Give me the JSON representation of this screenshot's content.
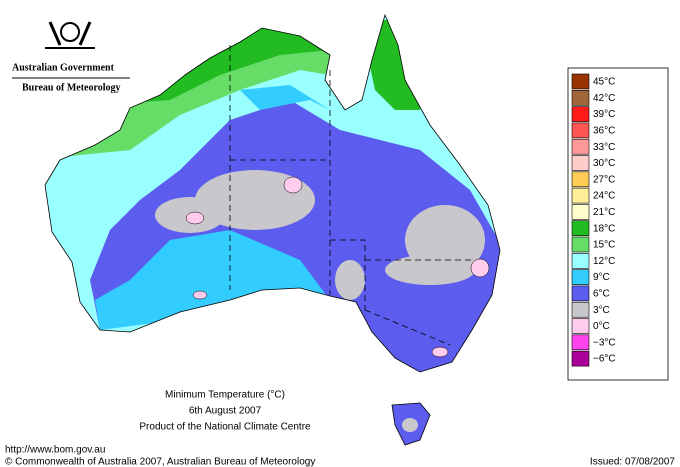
{
  "header": {
    "agency": "Australian Government",
    "bureau": "Bureau of Meteorology"
  },
  "map": {
    "title": "Minimum Temperature (°C)",
    "date": "6th August 2007",
    "subtitle": "Product of the National Climate Centre"
  },
  "legend": [
    {
      "label": "45°C",
      "color": "#993300"
    },
    {
      "label": "42°C",
      "color": "#a0663a"
    },
    {
      "label": "39°C",
      "color": "#ff1a1a"
    },
    {
      "label": "36°C",
      "color": "#ff5555"
    },
    {
      "label": "33°C",
      "color": "#ff9999"
    },
    {
      "label": "30°C",
      "color": "#ffcccc"
    },
    {
      "label": "27°C",
      "color": "#ffcc55"
    },
    {
      "label": "24°C",
      "color": "#ffee99"
    },
    {
      "label": "21°C",
      "color": "#ffffcc"
    },
    {
      "label": "18°C",
      "color": "#22bb22"
    },
    {
      "label": "15°C",
      "color": "#66dd66"
    },
    {
      "label": "12°C",
      "color": "#99ffff"
    },
    {
      "label": "9°C",
      "color": "#33ccff"
    },
    {
      "label": "6°C",
      "color": "#5c5cee"
    },
    {
      "label": "3°C",
      "color": "#c8c8cc"
    },
    {
      "label": "0°C",
      "color": "#ffccee"
    },
    {
      "label": "−3°C",
      "color": "#ff44ee"
    },
    {
      "label": "−6°C",
      "color": "#aa0099"
    }
  ],
  "footer": {
    "url": "http://www.bom.gov.au",
    "copyright": "© Commonwealth of Australia 2007, Australian Bureau of Meteorology",
    "issued": "Issued: 07/08/2007"
  }
}
